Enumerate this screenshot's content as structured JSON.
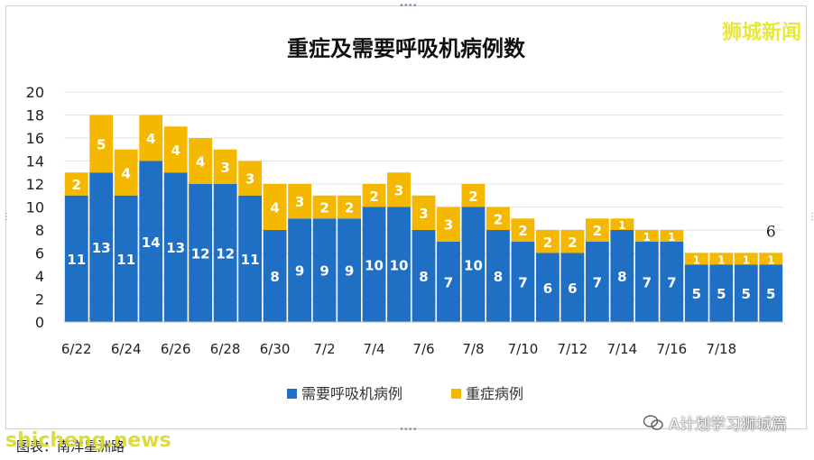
{
  "watermark_top": "狮城新闻",
  "watermark_bottom": "shicheng.news",
  "caption": "图表：南洋星洲路",
  "wechat_label": "A计划学习狮城篇",
  "colors": {
    "ventilator": "#1f6fc5",
    "severe": "#f5b800",
    "grid": "#e3e3e3"
  },
  "chart_data": {
    "type": "bar",
    "stacked": true,
    "title": "重症及需要呼吸机病例数",
    "xlabel": "",
    "ylabel": "",
    "ylim": [
      0,
      20
    ],
    "yticks": [
      0,
      2,
      4,
      6,
      8,
      10,
      12,
      14,
      16,
      18,
      20
    ],
    "categories": [
      "6/22",
      "6/23",
      "6/24",
      "6/25",
      "6/26",
      "6/27",
      "6/28",
      "6/29",
      "6/30",
      "7/1",
      "7/2",
      "7/3",
      "7/4",
      "7/5",
      "7/6",
      "7/7",
      "7/8",
      "7/9",
      "7/10",
      "7/11",
      "7/12",
      "7/13",
      "7/14",
      "7/15",
      "7/16",
      "7/17",
      "7/18",
      "7/19",
      "7/20"
    ],
    "tick_labels": [
      "6/22",
      "",
      "6/24",
      "",
      "6/26",
      "",
      "6/28",
      "",
      "6/30",
      "",
      "7/2",
      "",
      "7/4",
      "",
      "7/6",
      "",
      "7/8",
      "",
      "7/10",
      "",
      "7/12",
      "",
      "7/14",
      "",
      "7/16",
      "",
      "7/18",
      "",
      ""
    ],
    "series": [
      {
        "name": "需要呼吸机病例",
        "values": [
          11,
          13,
          11,
          14,
          13,
          12,
          12,
          11,
          8,
          9,
          9,
          9,
          10,
          10,
          8,
          7,
          10,
          8,
          7,
          6,
          6,
          7,
          8,
          7,
          7,
          5,
          5,
          5,
          5
        ]
      },
      {
        "name": "重症病例",
        "values": [
          2,
          5,
          4,
          4,
          4,
          4,
          3,
          3,
          4,
          3,
          2,
          2,
          2,
          3,
          3,
          3,
          2,
          2,
          2,
          2,
          2,
          2,
          1,
          1,
          1,
          1,
          1,
          1,
          1
        ]
      }
    ],
    "legend_position": "bottom",
    "grid": true,
    "annotations": [
      {
        "text": "6",
        "category": "7/20"
      }
    ]
  }
}
